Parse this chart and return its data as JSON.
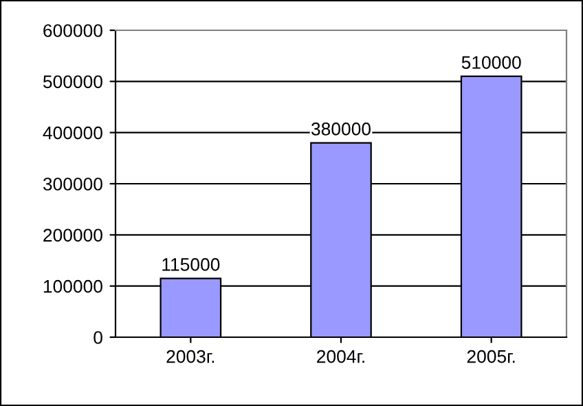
{
  "chart_data": {
    "type": "bar",
    "categories": [
      "2003г.",
      "2004г.",
      "2005г."
    ],
    "values": [
      115000,
      380000,
      510000
    ],
    "color": "#9999ff",
    "ylim": [
      0,
      600000
    ],
    "yticks": [
      0,
      100000,
      200000,
      300000,
      400000,
      500000,
      600000
    ],
    "grid": "y",
    "data_labels": true
  }
}
